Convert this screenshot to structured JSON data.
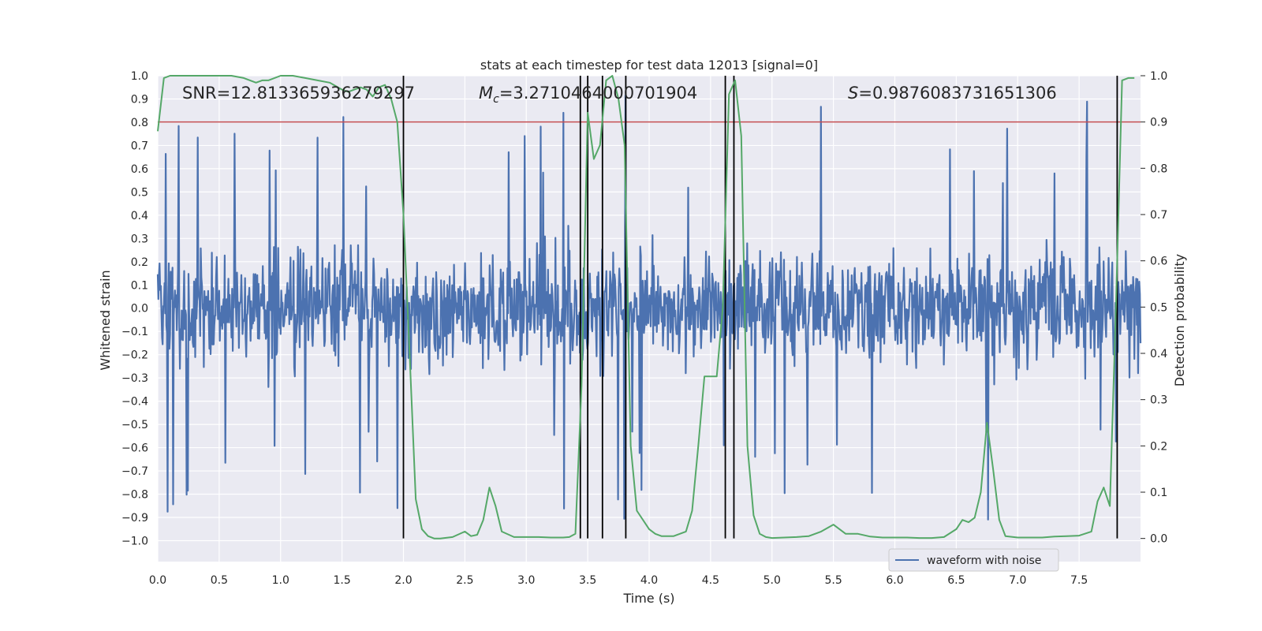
{
  "chart_data": {
    "type": "line",
    "title": "stats at each timestep for test data 12013 [signal=0]",
    "xlabel": "Time (s)",
    "ylabel": "Whitened strain",
    "y2label": "Detection probability",
    "xlim": [
      0.0,
      8.0
    ],
    "ylim": [
      -1.09,
      1.0
    ],
    "y2lim": [
      -0.05,
      1.0
    ],
    "x_ticks": [
      "0.0",
      "0.5",
      "1.0",
      "1.5",
      "2.0",
      "2.5",
      "3.0",
      "3.5",
      "4.0",
      "4.5",
      "5.0",
      "5.5",
      "6.0",
      "6.5",
      "7.0",
      "7.5"
    ],
    "x_tick_values": [
      0.0,
      0.5,
      1.0,
      1.5,
      2.0,
      2.5,
      3.0,
      3.5,
      4.0,
      4.5,
      5.0,
      5.5,
      6.0,
      6.5,
      7.0,
      7.5
    ],
    "y_ticks": [
      "1.0",
      "0.9",
      "0.8",
      "0.7",
      "0.6",
      "0.5",
      "0.4",
      "0.3",
      "0.2",
      "0.1",
      "0.0",
      "−0.1",
      "−0.2",
      "−0.3",
      "−0.4",
      "−0.5",
      "−0.6",
      "−0.7",
      "−0.8",
      "−0.9",
      "−1.0"
    ],
    "y_tick_values": [
      1.0,
      0.9,
      0.8,
      0.7,
      0.6,
      0.5,
      0.4,
      0.3,
      0.2,
      0.1,
      0.0,
      -0.1,
      -0.2,
      -0.3,
      -0.4,
      -0.5,
      -0.6,
      -0.7,
      -0.8,
      -0.9,
      -1.0
    ],
    "y2_ticks": [
      "1.0",
      "0.9",
      "0.8",
      "0.7",
      "0.6",
      "0.5",
      "0.4",
      "0.3",
      "0.2",
      "0.1",
      "0.0"
    ],
    "y2_tick_values": [
      1.0,
      0.9,
      0.8,
      0.7,
      0.6,
      0.5,
      0.4,
      0.3,
      0.2,
      0.1,
      0.0
    ],
    "threshold": 0.9,
    "detection_lines_x": [
      2.0,
      3.44,
      3.5,
      3.62,
      3.81,
      4.62,
      4.69,
      7.81
    ],
    "detection_line_y2_range": [
      0.0,
      1.0
    ],
    "series": [
      {
        "name": "waveform with noise",
        "axis": "left",
        "color": "#4c72b0",
        "description": "dense whitened noise, bulk roughly -0.45 to 0.42",
        "noise_params": {
          "n": 1600,
          "bulk_amplitude": 0.42,
          "max_amplitude": 0.92
        }
      },
      {
        "name": "detection probability",
        "axis": "right",
        "color": "#55a868",
        "x": [
          0.0,
          0.05,
          0.1,
          0.2,
          0.3,
          0.4,
          0.5,
          0.6,
          0.7,
          0.8,
          0.85,
          0.9,
          1.0,
          1.1,
          1.2,
          1.3,
          1.4,
          1.5,
          1.55,
          1.6,
          1.65,
          1.7,
          1.75,
          1.8,
          1.85,
          1.9,
          1.95,
          2.0,
          2.05,
          2.1,
          2.15,
          2.2,
          2.25,
          2.3,
          2.4,
          2.5,
          2.55,
          2.6,
          2.65,
          2.7,
          2.75,
          2.8,
          2.9,
          3.0,
          3.1,
          3.2,
          3.3,
          3.35,
          3.4,
          3.45,
          3.5,
          3.55,
          3.6,
          3.65,
          3.7,
          3.75,
          3.8,
          3.85,
          3.9,
          4.0,
          4.05,
          4.1,
          4.2,
          4.3,
          4.35,
          4.4,
          4.45,
          4.5,
          4.55,
          4.6,
          4.65,
          4.7,
          4.75,
          4.8,
          4.85,
          4.9,
          4.95,
          5.0,
          5.1,
          5.2,
          5.3,
          5.4,
          5.5,
          5.55,
          5.6,
          5.7,
          5.8,
          5.9,
          6.0,
          6.1,
          6.2,
          6.3,
          6.4,
          6.5,
          6.55,
          6.6,
          6.65,
          6.7,
          6.75,
          6.8,
          6.85,
          6.9,
          7.0,
          7.1,
          7.2,
          7.3,
          7.4,
          7.5,
          7.6,
          7.65,
          7.7,
          7.75,
          7.8,
          7.85,
          7.9,
          7.95
        ],
        "values": [
          0.88,
          0.995,
          1.0,
          1.0,
          1.0,
          1.0,
          1.0,
          1.0,
          0.995,
          0.985,
          0.99,
          0.99,
          1.0,
          1.0,
          0.995,
          0.99,
          0.985,
          0.97,
          0.965,
          0.97,
          0.975,
          0.97,
          0.955,
          0.975,
          0.98,
          0.95,
          0.9,
          0.7,
          0.4,
          0.085,
          0.02,
          0.005,
          0.0,
          0.0,
          0.003,
          0.015,
          0.005,
          0.008,
          0.04,
          0.11,
          0.07,
          0.015,
          0.003,
          0.003,
          0.003,
          0.002,
          0.002,
          0.003,
          0.01,
          0.33,
          0.92,
          0.82,
          0.85,
          0.99,
          1.0,
          0.95,
          0.85,
          0.2,
          0.06,
          0.02,
          0.01,
          0.005,
          0.005,
          0.015,
          0.06,
          0.2,
          0.35,
          0.35,
          0.35,
          0.5,
          0.96,
          0.99,
          0.87,
          0.2,
          0.05,
          0.01,
          0.003,
          0.001,
          0.002,
          0.003,
          0.005,
          0.015,
          0.03,
          0.02,
          0.01,
          0.01,
          0.004,
          0.002,
          0.002,
          0.002,
          0.001,
          0.001,
          0.003,
          0.02,
          0.04,
          0.035,
          0.045,
          0.1,
          0.25,
          0.15,
          0.04,
          0.005,
          0.002,
          0.002,
          0.002,
          0.004,
          0.005,
          0.006,
          0.015,
          0.08,
          0.11,
          0.07,
          0.5,
          0.99,
          0.995,
          0.995
        ]
      }
    ],
    "annotations": [
      {
        "id": "snr",
        "text": "SNR=12.813365936279297"
      },
      {
        "id": "mc",
        "text_prefix": "M",
        "text_sub": "c",
        "text_rest": "=3.2710464000701904"
      },
      {
        "id": "s",
        "text_prefix": "S",
        "text_rest": "=0.9876083731651306"
      }
    ],
    "legend": {
      "label": "waveform with noise",
      "placement": "lower-right"
    },
    "colors": {
      "plot_bg": "#eaeaf2",
      "grid": "#ffffff",
      "noise": "#4c72b0",
      "prob": "#55a868",
      "threshold": "#c44e52",
      "detection": "#000000"
    }
  }
}
